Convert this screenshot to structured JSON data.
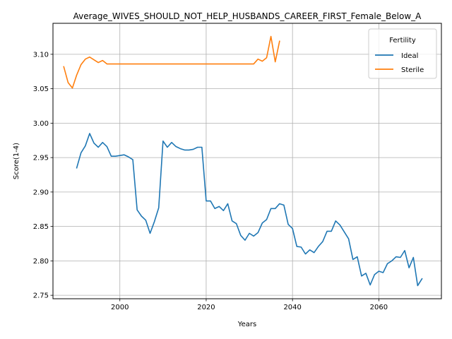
{
  "chart_data": {
    "type": "line",
    "title": "Average_WIVES_SHOULD_NOT_HELP_HUSBANDS_CAREER_FIRST_Female_Below_A",
    "xlabel": "Years",
    "ylabel": "Score(1-4)",
    "xlim": [
      1984.5,
      2074.5
    ],
    "ylim": [
      2.745,
      3.145
    ],
    "xticks": [
      2000,
      2020,
      2040,
      2060
    ],
    "yticks": [
      2.75,
      2.8,
      2.85,
      2.9,
      2.95,
      3.0,
      3.05,
      3.1
    ],
    "xtick_labels": [
      "2000",
      "2020",
      "2040",
      "2060"
    ],
    "ytick_labels": [
      "2.75",
      "2.80",
      "2.85",
      "2.90",
      "2.95",
      "3.00",
      "3.05",
      "3.10"
    ],
    "grid": true,
    "legend": {
      "title": "Fertility",
      "placement": "top-right"
    },
    "series": [
      {
        "name": "Ideal",
        "color": "#1f77b4",
        "x": [
          1990,
          1991,
          1992,
          1993,
          1994,
          1995,
          1996,
          1997,
          1998,
          1999,
          2000,
          2001,
          2002,
          2003,
          2004,
          2005,
          2006,
          2007,
          2008,
          2009,
          2010,
          2011,
          2012,
          2013,
          2014,
          2015,
          2016,
          2017,
          2018,
          2019,
          2020,
          2021,
          2022,
          2023,
          2024,
          2025,
          2026,
          2027,
          2028,
          2029,
          2030,
          2031,
          2032,
          2033,
          2034,
          2035,
          2036,
          2037,
          2038,
          2039,
          2040,
          2041,
          2042,
          2043,
          2044,
          2045,
          2046,
          2047,
          2048,
          2049,
          2050,
          2051,
          2052,
          2053,
          2054,
          2055,
          2056,
          2057,
          2058,
          2059,
          2060,
          2061,
          2062,
          2063,
          2064,
          2065,
          2066,
          2067,
          2068,
          2069,
          2070
        ],
        "y": [
          2.935,
          2.957,
          2.967,
          2.985,
          2.971,
          2.965,
          2.972,
          2.966,
          2.952,
          2.952,
          2.953,
          2.954,
          2.951,
          2.947,
          2.874,
          2.865,
          2.859,
          2.84,
          2.857,
          2.877,
          2.974,
          2.965,
          2.972,
          2.966,
          2.963,
          2.961,
          2.961,
          2.962,
          2.965,
          2.965,
          2.887,
          2.887,
          2.876,
          2.879,
          2.873,
          2.883,
          2.858,
          2.854,
          2.837,
          2.83,
          2.84,
          2.836,
          2.841,
          2.855,
          2.86,
          2.876,
          2.876,
          2.883,
          2.881,
          2.853,
          2.847,
          2.821,
          2.82,
          2.81,
          2.816,
          2.812,
          2.821,
          2.828,
          2.843,
          2.843,
          2.858,
          2.852,
          2.842,
          2.832,
          2.802,
          2.806,
          2.778,
          2.782,
          2.765,
          2.78,
          2.785,
          2.783,
          2.796,
          2.8,
          2.806,
          2.805,
          2.815,
          2.79,
          2.805,
          2.764,
          2.774
        ]
      },
      {
        "name": "Sterile",
        "color": "#ff7f0e",
        "x": [
          1987,
          1988,
          1989,
          1990,
          1991,
          1992,
          1993,
          1994,
          1995,
          1996,
          1997,
          1998,
          1999,
          2000,
          2001,
          2002,
          2003,
          2004,
          2005,
          2006,
          2007,
          2008,
          2009,
          2010,
          2011,
          2012,
          2013,
          2014,
          2015,
          2016,
          2017,
          2018,
          2019,
          2020,
          2021,
          2022,
          2023,
          2024,
          2025,
          2026,
          2027,
          2028,
          2029,
          2030,
          2031,
          2032,
          2033,
          2034,
          2035,
          2036,
          2037
        ],
        "y": [
          3.082,
          3.059,
          3.051,
          3.07,
          3.085,
          3.093,
          3.096,
          3.092,
          3.088,
          3.091,
          3.086,
          3.086,
          3.086,
          3.086,
          3.086,
          3.086,
          3.086,
          3.086,
          3.086,
          3.086,
          3.086,
          3.086,
          3.086,
          3.086,
          3.086,
          3.086,
          3.086,
          3.086,
          3.086,
          3.086,
          3.086,
          3.086,
          3.086,
          3.086,
          3.086,
          3.086,
          3.086,
          3.086,
          3.086,
          3.086,
          3.086,
          3.086,
          3.086,
          3.086,
          3.086,
          3.093,
          3.09,
          3.095,
          3.126,
          3.089,
          3.119
        ]
      }
    ]
  }
}
